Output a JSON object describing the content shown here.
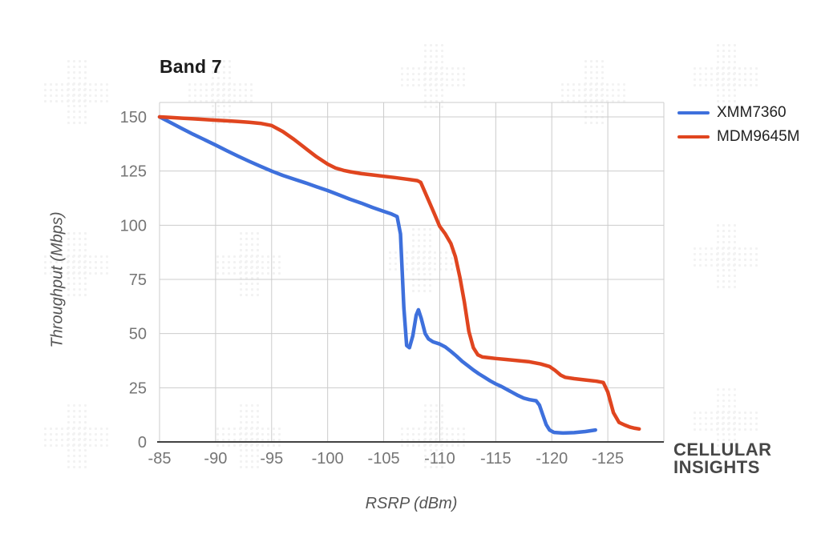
{
  "branding": {
    "line1": "CELLULAR",
    "line2": "INSIGHTS"
  },
  "chart_data": {
    "type": "line",
    "title": "Band 7",
    "xlabel": "RSRP (dBm)",
    "ylabel": "Throughput (Mbps)",
    "xlim": [
      -85,
      -130
    ],
    "ylim": [
      0,
      150
    ],
    "x_ticks": [
      -85,
      -90,
      -95,
      -100,
      -105,
      -110,
      -115,
      -120,
      -125
    ],
    "y_ticks": [
      0,
      25,
      50,
      75,
      100,
      125,
      150
    ],
    "grid": true,
    "legend_position": "right-top",
    "colors": {
      "gridline": "#cccccc",
      "axis": "#424242",
      "tick_label": "#757575"
    },
    "series": [
      {
        "name": "XMM7360",
        "color": "#3e70dc",
        "points": [
          [
            -85,
            150
          ],
          [
            -86,
            147.3
          ],
          [
            -87,
            144.6
          ],
          [
            -88,
            142
          ],
          [
            -89,
            139.5
          ],
          [
            -90,
            137
          ],
          [
            -91,
            134.4
          ],
          [
            -92,
            131.9
          ],
          [
            -93,
            129.5
          ],
          [
            -94,
            127.2
          ],
          [
            -95,
            125
          ],
          [
            -96,
            123
          ],
          [
            -97,
            121.3
          ],
          [
            -98,
            119.6
          ],
          [
            -99,
            117.8
          ],
          [
            -100,
            116
          ],
          [
            -101,
            114
          ],
          [
            -102,
            112
          ],
          [
            -103,
            110.2
          ],
          [
            -104,
            108.2
          ],
          [
            -105,
            106.4
          ],
          [
            -105.7,
            105.2
          ],
          [
            -106.2,
            104
          ],
          [
            -106.5,
            96
          ],
          [
            -106.8,
            62
          ],
          [
            -107.05,
            44.5
          ],
          [
            -107.3,
            43.5
          ],
          [
            -107.6,
            49
          ],
          [
            -107.9,
            58.5
          ],
          [
            -108.1,
            61
          ],
          [
            -108.35,
            57
          ],
          [
            -108.7,
            50
          ],
          [
            -109,
            47.5
          ],
          [
            -109.4,
            46.2
          ],
          [
            -110,
            45.2
          ],
          [
            -110.5,
            43.8
          ],
          [
            -111,
            41.8
          ],
          [
            -111.5,
            39.6
          ],
          [
            -112,
            37.2
          ],
          [
            -112.5,
            35.2
          ],
          [
            -113,
            33.2
          ],
          [
            -113.5,
            31.4
          ],
          [
            -114,
            29.8
          ],
          [
            -114.5,
            28.2
          ],
          [
            -115,
            26.8
          ],
          [
            -115.5,
            25.6
          ],
          [
            -116,
            24.2
          ],
          [
            -116.5,
            22.8
          ],
          [
            -117,
            21.4
          ],
          [
            -117.5,
            20.2
          ],
          [
            -118,
            19.5
          ],
          [
            -118.6,
            19
          ],
          [
            -118.9,
            17
          ],
          [
            -119.2,
            12.5
          ],
          [
            -119.5,
            8
          ],
          [
            -119.8,
            5.5
          ],
          [
            -120.2,
            4.4
          ],
          [
            -121,
            4.1
          ],
          [
            -122,
            4.3
          ],
          [
            -123,
            4.8
          ],
          [
            -123.9,
            5.5
          ]
        ]
      },
      {
        "name": "MDM9645M",
        "color": "#e0451f",
        "points": [
          [
            -85,
            150
          ],
          [
            -86,
            149.7
          ],
          [
            -87,
            149.4
          ],
          [
            -88,
            149.1
          ],
          [
            -89,
            148.8
          ],
          [
            -90,
            148.5
          ],
          [
            -91,
            148.2
          ],
          [
            -92,
            147.9
          ],
          [
            -93,
            147.5
          ],
          [
            -94,
            147
          ],
          [
            -95,
            146
          ],
          [
            -96,
            143.2
          ],
          [
            -97,
            139.6
          ],
          [
            -98,
            135.6
          ],
          [
            -99,
            131.6
          ],
          [
            -100,
            128.2
          ],
          [
            -100.7,
            126.4
          ],
          [
            -101.5,
            125.2
          ],
          [
            -102,
            124.7
          ],
          [
            -103,
            123.8
          ],
          [
            -104,
            123.2
          ],
          [
            -105,
            122.6
          ],
          [
            -106,
            122
          ],
          [
            -107,
            121.3
          ],
          [
            -108,
            120.6
          ],
          [
            -108.3,
            119.8
          ],
          [
            -109,
            111.5
          ],
          [
            -109.5,
            105.5
          ],
          [
            -110,
            99.5
          ],
          [
            -110.5,
            96
          ],
          [
            -111,
            91.5
          ],
          [
            -111.4,
            85.5
          ],
          [
            -111.8,
            76
          ],
          [
            -112.2,
            64.5
          ],
          [
            -112.6,
            51
          ],
          [
            -113,
            43.5
          ],
          [
            -113.4,
            40.2
          ],
          [
            -113.8,
            39.2
          ],
          [
            -114.5,
            38.8
          ],
          [
            -115,
            38.5
          ],
          [
            -116,
            38
          ],
          [
            -117,
            37.5
          ],
          [
            -118,
            37
          ],
          [
            -119,
            36
          ],
          [
            -119.8,
            34.8
          ],
          [
            -120.3,
            33
          ],
          [
            -120.8,
            30.8
          ],
          [
            -121.2,
            29.8
          ],
          [
            -122,
            29.2
          ],
          [
            -123,
            28.6
          ],
          [
            -124,
            28
          ],
          [
            -124.6,
            27.4
          ],
          [
            -125,
            23
          ],
          [
            -125.5,
            13.5
          ],
          [
            -126,
            9
          ],
          [
            -126.5,
            7.8
          ],
          [
            -127,
            6.8
          ],
          [
            -127.4,
            6.3
          ],
          [
            -127.8,
            6
          ]
        ]
      }
    ]
  }
}
